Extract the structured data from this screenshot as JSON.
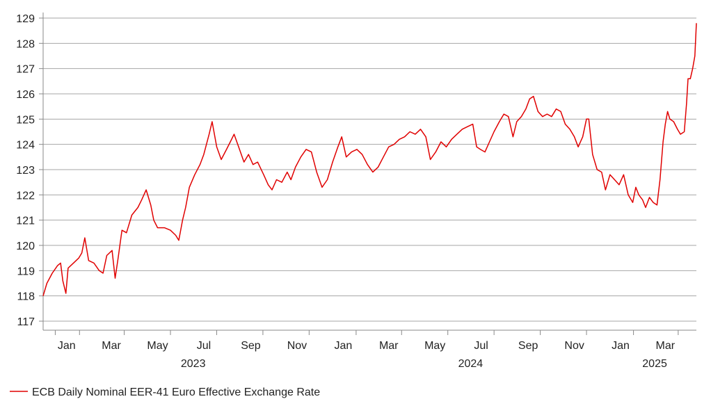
{
  "chart_data": {
    "type": "line",
    "title": "",
    "xlabel": "",
    "ylabel": "",
    "ylim": [
      117,
      129
    ],
    "yticks": [
      117,
      118,
      119,
      120,
      121,
      122,
      123,
      124,
      125,
      126,
      127,
      128,
      129
    ],
    "grid": "horizontal",
    "legend_position": "bottom-left",
    "x_month_ticks": [
      "Jan",
      "Mar",
      "May",
      "Jul",
      "Sep",
      "Nov",
      "Jan",
      "Mar",
      "May",
      "Jul",
      "Sep",
      "Nov",
      "Jan",
      "Mar"
    ],
    "x_year_labels": [
      "2023",
      "2024",
      "2025"
    ],
    "series": [
      {
        "name": "ECB Daily Nominal EER-41 Euro Effective Exchange Rate",
        "color": "#e00000",
        "points": [
          [
            "2022-12-15",
            118.0
          ],
          [
            "2022-12-20",
            118.5
          ],
          [
            "2022-12-27",
            118.9
          ],
          [
            "2023-01-03",
            119.2
          ],
          [
            "2023-01-07",
            119.3
          ],
          [
            "2023-01-10",
            118.6
          ],
          [
            "2023-01-14",
            118.1
          ],
          [
            "2023-01-17",
            119.1
          ],
          [
            "2023-01-24",
            119.3
          ],
          [
            "2023-01-31",
            119.5
          ],
          [
            "2023-02-04",
            119.7
          ],
          [
            "2023-02-08",
            120.3
          ],
          [
            "2023-02-13",
            119.4
          ],
          [
            "2023-02-20",
            119.3
          ],
          [
            "2023-02-27",
            119.0
          ],
          [
            "2023-03-04",
            118.9
          ],
          [
            "2023-03-09",
            119.6
          ],
          [
            "2023-03-16",
            119.8
          ],
          [
            "2023-03-20",
            118.7
          ],
          [
            "2023-03-24",
            119.5
          ],
          [
            "2023-03-29",
            120.6
          ],
          [
            "2023-04-04",
            120.5
          ],
          [
            "2023-04-11",
            121.2
          ],
          [
            "2023-04-19",
            121.5
          ],
          [
            "2023-04-24",
            121.8
          ],
          [
            "2023-04-30",
            122.2
          ],
          [
            "2023-05-06",
            121.6
          ],
          [
            "2023-05-10",
            121.0
          ],
          [
            "2023-05-15",
            120.7
          ],
          [
            "2023-05-24",
            120.7
          ],
          [
            "2023-06-01",
            120.6
          ],
          [
            "2023-06-08",
            120.4
          ],
          [
            "2023-06-12",
            120.2
          ],
          [
            "2023-06-17",
            121.0
          ],
          [
            "2023-06-21",
            121.5
          ],
          [
            "2023-06-26",
            122.3
          ],
          [
            "2023-07-03",
            122.8
          ],
          [
            "2023-07-10",
            123.2
          ],
          [
            "2023-07-15",
            123.6
          ],
          [
            "2023-07-22",
            124.4
          ],
          [
            "2023-07-26",
            124.9
          ],
          [
            "2023-08-01",
            123.9
          ],
          [
            "2023-08-07",
            123.4
          ],
          [
            "2023-08-14",
            123.8
          ],
          [
            "2023-08-19",
            124.1
          ],
          [
            "2023-08-24",
            124.4
          ],
          [
            "2023-08-30",
            123.9
          ],
          [
            "2023-09-06",
            123.3
          ],
          [
            "2023-09-12",
            123.6
          ],
          [
            "2023-09-18",
            123.2
          ],
          [
            "2023-09-24",
            123.3
          ],
          [
            "2023-10-02",
            122.8
          ],
          [
            "2023-10-08",
            122.4
          ],
          [
            "2023-10-13",
            122.2
          ],
          [
            "2023-10-19",
            122.6
          ],
          [
            "2023-10-26",
            122.5
          ],
          [
            "2023-11-02",
            122.9
          ],
          [
            "2023-11-07",
            122.6
          ],
          [
            "2023-11-13",
            123.1
          ],
          [
            "2023-11-20",
            123.5
          ],
          [
            "2023-11-27",
            123.8
          ],
          [
            "2023-12-04",
            123.7
          ],
          [
            "2023-12-11",
            122.9
          ],
          [
            "2023-12-18",
            122.3
          ],
          [
            "2023-12-25",
            122.6
          ],
          [
            "2024-01-01",
            123.3
          ],
          [
            "2024-01-08",
            123.9
          ],
          [
            "2024-01-13",
            124.3
          ],
          [
            "2024-01-19",
            123.5
          ],
          [
            "2024-01-26",
            123.7
          ],
          [
            "2024-02-02",
            123.8
          ],
          [
            "2024-02-09",
            123.6
          ],
          [
            "2024-02-16",
            123.2
          ],
          [
            "2024-02-23",
            122.9
          ],
          [
            "2024-03-01",
            123.1
          ],
          [
            "2024-03-08",
            123.5
          ],
          [
            "2024-03-15",
            123.9
          ],
          [
            "2024-03-22",
            124.0
          ],
          [
            "2024-03-29",
            124.2
          ],
          [
            "2024-04-05",
            124.3
          ],
          [
            "2024-04-12",
            124.5
          ],
          [
            "2024-04-19",
            124.4
          ],
          [
            "2024-04-26",
            124.6
          ],
          [
            "2024-05-03",
            124.3
          ],
          [
            "2024-05-09",
            123.4
          ],
          [
            "2024-05-16",
            123.7
          ],
          [
            "2024-05-23",
            124.1
          ],
          [
            "2024-05-30",
            123.9
          ],
          [
            "2024-06-06",
            124.2
          ],
          [
            "2024-06-13",
            124.4
          ],
          [
            "2024-06-20",
            124.6
          ],
          [
            "2024-06-27",
            124.7
          ],
          [
            "2024-07-04",
            124.8
          ],
          [
            "2024-07-09",
            123.9
          ],
          [
            "2024-07-14",
            123.8
          ],
          [
            "2024-07-20",
            123.7
          ],
          [
            "2024-07-26",
            124.1
          ],
          [
            "2024-08-01",
            124.5
          ],
          [
            "2024-08-08",
            124.9
          ],
          [
            "2024-08-14",
            125.2
          ],
          [
            "2024-08-20",
            125.1
          ],
          [
            "2024-08-26",
            124.3
          ],
          [
            "2024-08-31",
            124.9
          ],
          [
            "2024-09-06",
            125.1
          ],
          [
            "2024-09-12",
            125.4
          ],
          [
            "2024-09-17",
            125.8
          ],
          [
            "2024-09-22",
            125.9
          ],
          [
            "2024-09-28",
            125.3
          ],
          [
            "2024-10-04",
            125.1
          ],
          [
            "2024-10-10",
            125.2
          ],
          [
            "2024-10-16",
            125.1
          ],
          [
            "2024-10-22",
            125.4
          ],
          [
            "2024-10-28",
            125.3
          ],
          [
            "2024-11-03",
            124.8
          ],
          [
            "2024-11-09",
            124.6
          ],
          [
            "2024-11-15",
            124.3
          ],
          [
            "2024-11-20",
            123.9
          ],
          [
            "2024-11-26",
            124.3
          ],
          [
            "2024-12-01",
            125.0
          ],
          [
            "2024-12-04",
            125.0
          ],
          [
            "2024-12-09",
            123.6
          ],
          [
            "2024-12-15",
            123.0
          ],
          [
            "2024-12-21",
            122.9
          ],
          [
            "2024-12-26",
            122.2
          ],
          [
            "2025-01-01",
            122.8
          ],
          [
            "2025-01-07",
            122.6
          ],
          [
            "2025-01-13",
            122.4
          ],
          [
            "2025-01-19",
            122.8
          ],
          [
            "2025-01-25",
            122.0
          ],
          [
            "2025-01-31",
            121.7
          ],
          [
            "2025-02-04",
            122.3
          ],
          [
            "2025-02-08",
            122.0
          ],
          [
            "2025-02-13",
            121.8
          ],
          [
            "2025-02-17",
            121.5
          ],
          [
            "2025-02-22",
            121.9
          ],
          [
            "2025-02-27",
            121.7
          ],
          [
            "2025-03-04",
            121.6
          ],
          [
            "2025-03-08",
            122.6
          ],
          [
            "2025-03-12",
            124.1
          ],
          [
            "2025-03-15",
            124.8
          ],
          [
            "2025-03-18",
            125.3
          ],
          [
            "2025-03-21",
            125.0
          ],
          [
            "2025-03-26",
            124.9
          ],
          [
            "2025-03-31",
            124.6
          ],
          [
            "2025-04-04",
            124.4
          ],
          [
            "2025-04-09",
            124.5
          ],
          [
            "2025-04-12",
            125.6
          ],
          [
            "2025-04-14",
            126.6
          ],
          [
            "2025-04-17",
            126.6
          ],
          [
            "2025-04-20",
            127.0
          ],
          [
            "2025-04-23",
            127.5
          ],
          [
            "2025-04-25",
            128.8
          ]
        ]
      }
    ]
  }
}
